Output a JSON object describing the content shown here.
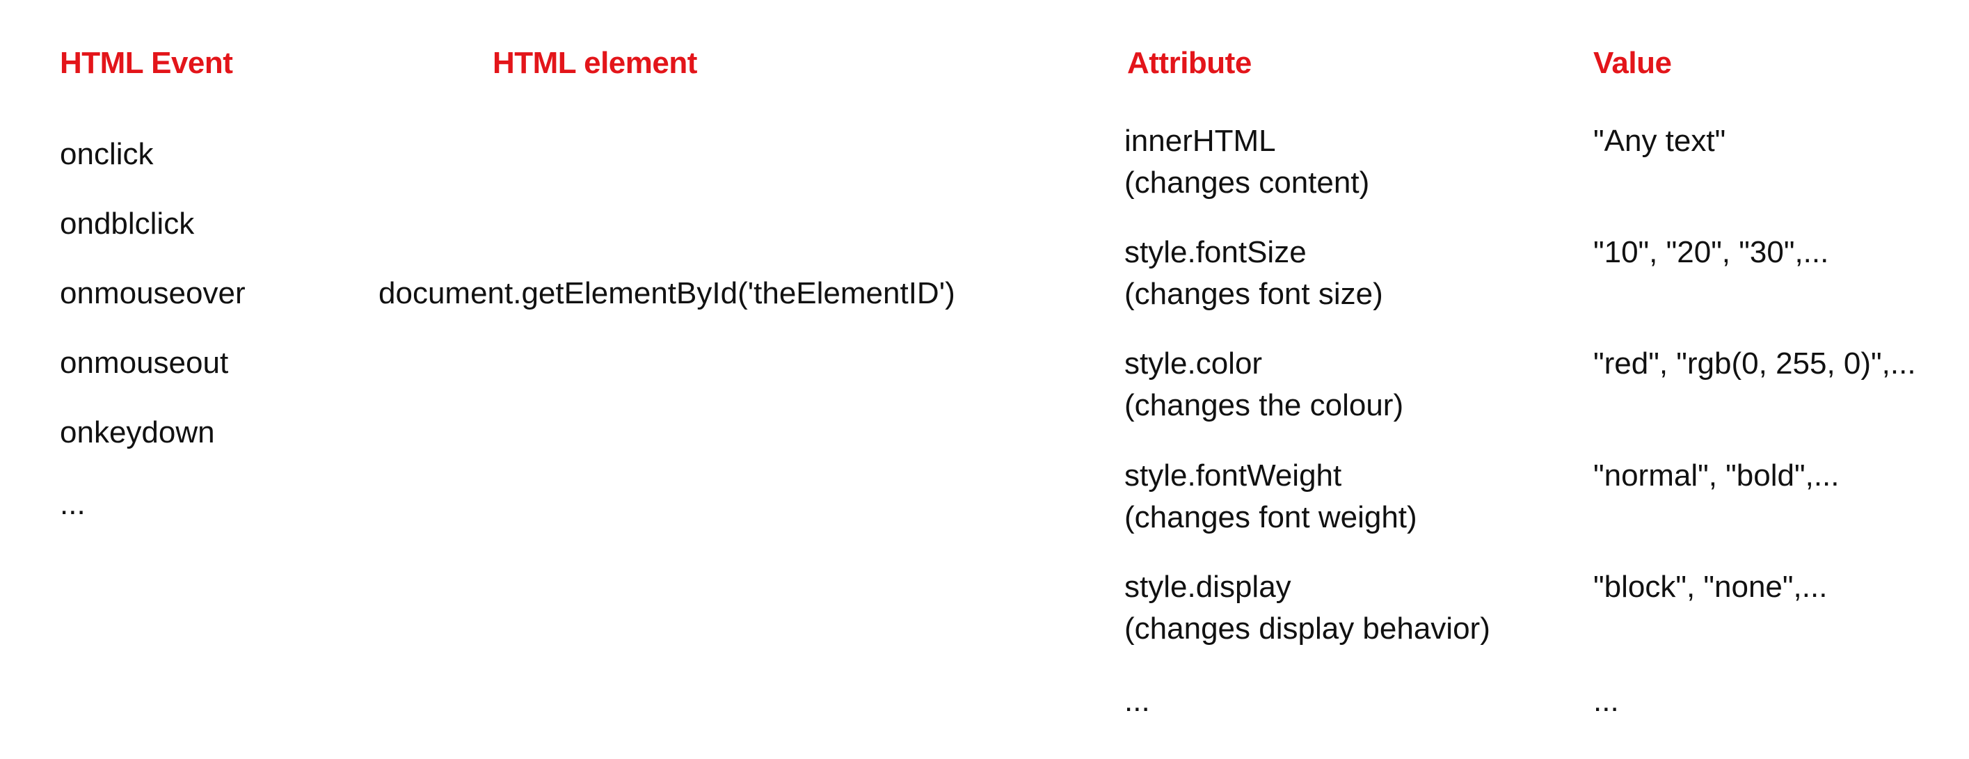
{
  "headings": {
    "event": "HTML Event",
    "element": "HTML element",
    "attribute": "Attribute",
    "value": "Value"
  },
  "events": [
    "onclick",
    "ondblclick",
    "onmouseover",
    "onmouseout",
    "onkeydown",
    "..."
  ],
  "element": "document.getElementById('theElementID')",
  "attributes": [
    {
      "name": "innerHTML",
      "desc": "(changes content)",
      "value": "\"Any text\""
    },
    {
      "name": "style.fontSize",
      "desc": "(changes font size)",
      "value": "\"10\", \"20\", \"30\",..."
    },
    {
      "name": "style.color",
      "desc": "(changes the colour)",
      "value": "\"red\", \"rgb(0, 255, 0)\",..."
    },
    {
      "name": "style.fontWeight",
      "desc": "(changes font weight)",
      "value": "\"normal\", \"bold\",..."
    },
    {
      "name": "style.display",
      "desc": "(changes display behavior)",
      "value": "\"block\", \"none\",..."
    }
  ],
  "attributes_more": "...",
  "values_more": "...",
  "colors": {
    "heading": "#e3151a",
    "text": "#111111",
    "background": "#ffffff"
  }
}
